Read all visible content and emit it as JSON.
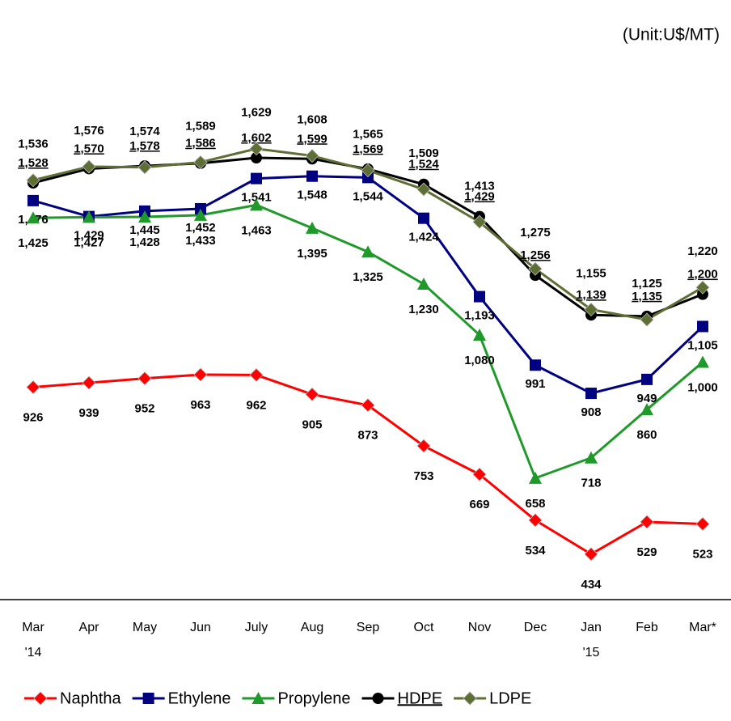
{
  "chart_data": {
    "type": "line",
    "unit": "(Unit:U$/MT)",
    "categories": [
      "Mar '14",
      "Apr",
      "May",
      "Jun",
      "July",
      "Aug",
      "Sep",
      "Oct",
      "Nov",
      "Dec",
      "Jan '15",
      "Feb",
      "Mar*"
    ],
    "ylim": [
      300,
      1750
    ],
    "series": [
      {
        "name": "Naphtha",
        "color": "#ff0000",
        "marker": "diamond",
        "values": [
          926,
          939,
          952,
          963,
          962,
          905,
          873,
          753,
          669,
          534,
          434,
          529,
          523
        ]
      },
      {
        "name": "Ethylene",
        "color": "#000080",
        "marker": "square",
        "values": [
          1476,
          1429,
          1445,
          1452,
          1541,
          1548,
          1544,
          1424,
          1193,
          991,
          908,
          949,
          1105
        ],
        "value_labels": [
          "1,476",
          "1,429",
          "1,445",
          "1,452",
          "1,541",
          "1,548",
          "1,544",
          "1,424",
          "1,193",
          "991",
          "908",
          "949",
          "1,105"
        ]
      },
      {
        "name": "Propylene",
        "color": "#1f9a2a",
        "marker": "triangle",
        "values": [
          1425,
          1427,
          1428,
          1433,
          1463,
          1395,
          1325,
          1230,
          1080,
          658,
          718,
          860,
          1000
        ],
        "value_labels": [
          "1,425",
          "1,427",
          "1,428",
          "1,433",
          "1,463",
          "1,395",
          "1,325",
          "1,230",
          "1,080",
          "658",
          "718",
          "860",
          "1,000"
        ]
      },
      {
        "name": "HDPE",
        "color": "#000000",
        "marker": "circle",
        "label_underline": true,
        "values": [
          1528,
          1570,
          1578,
          1586,
          1602,
          1599,
          1569,
          1524,
          1429,
          1256,
          1139,
          1135,
          1200
        ],
        "value_labels": [
          "1,528",
          "1,570",
          "1,578",
          "1,586",
          "1,602",
          "1,599",
          "1,569",
          "1,524",
          "1,429",
          "1,256",
          "1,139",
          "1,135",
          "1,200"
        ]
      },
      {
        "name": "LDPE",
        "color": "#5f6e35",
        "marker": "diamond",
        "values": [
          1536,
          1576,
          1574,
          1589,
          1629,
          1608,
          1565,
          1509,
          1413,
          1275,
          1155,
          1125,
          1220
        ],
        "value_labels": [
          "1,536",
          "1,576",
          "1,574",
          "1,589",
          "1,629",
          "1,608",
          "1,565",
          "1,509",
          "1,413",
          "1,275",
          "1,155",
          "1,125",
          "1,220"
        ]
      }
    ]
  }
}
